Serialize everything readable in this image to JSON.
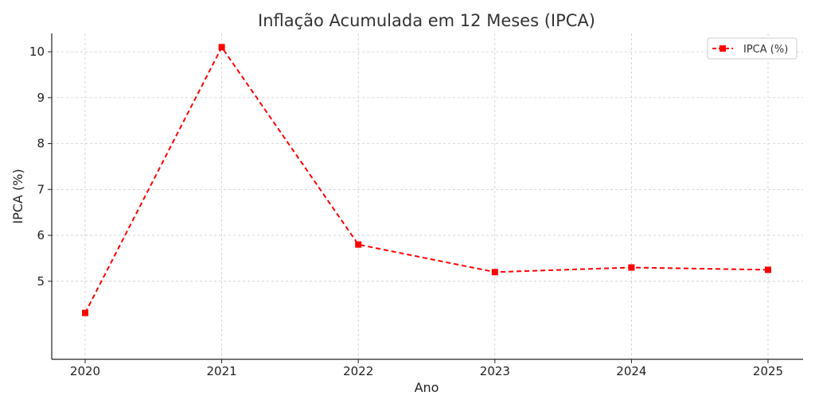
{
  "chart_data": {
    "type": "line",
    "title": "Inflação Acumulada em 12 Meses (IPCA)",
    "xlabel": "Ano",
    "ylabel": "IPCA (%)",
    "categories": [
      "2020",
      "2021",
      "2022",
      "2023",
      "2024",
      "2025"
    ],
    "series": [
      {
        "name": "IPCA (%)",
        "values": [
          4.31,
          10.1,
          5.8,
          5.2,
          5.3,
          5.25
        ],
        "color": "#ff0000",
        "line_style": "dashed",
        "marker": "square"
      }
    ],
    "yticks": [
      "5",
      "6",
      "7",
      "8",
      "9",
      "10"
    ],
    "ylim": [
      3.3,
      10.4
    ],
    "grid": true,
    "legend_position": "top-right"
  }
}
